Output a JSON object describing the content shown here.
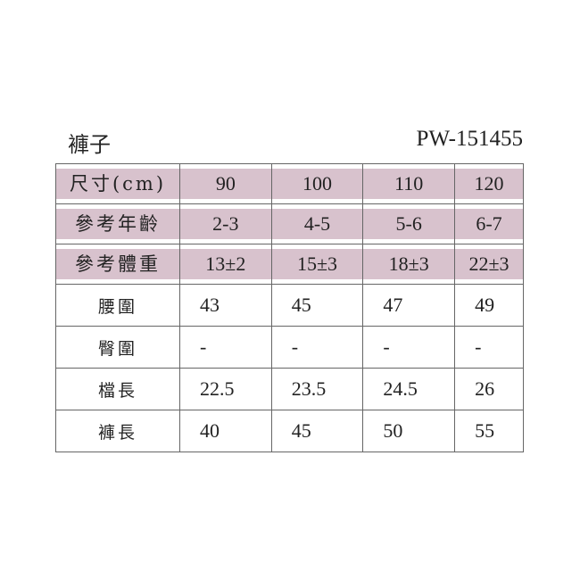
{
  "title": "褲子",
  "product_code": "PW-151455",
  "colors": {
    "header_band": "#d8c2cd",
    "grid": "#666666"
  },
  "header_rows": [
    {
      "label": "尺寸(cm)",
      "values": [
        "90",
        "100",
        "110",
        "120"
      ]
    },
    {
      "label": "參考年齡",
      "values": [
        "2-3",
        "4-5",
        "5-6",
        "6-7"
      ]
    },
    {
      "label": "參考體重",
      "values": [
        "13±2",
        "15±3",
        "18±3",
        "22±3"
      ]
    }
  ],
  "body_rows": [
    {
      "label": "腰圍",
      "values": [
        "43",
        "45",
        "47",
        "49"
      ]
    },
    {
      "label": "臀圍",
      "values": [
        "-",
        "-",
        "-",
        "-"
      ]
    },
    {
      "label": "檔長",
      "values": [
        "22.5",
        "23.5",
        "24.5",
        "26"
      ]
    },
    {
      "label": "褲長",
      "values": [
        "40",
        "45",
        "50",
        "55"
      ]
    }
  ]
}
